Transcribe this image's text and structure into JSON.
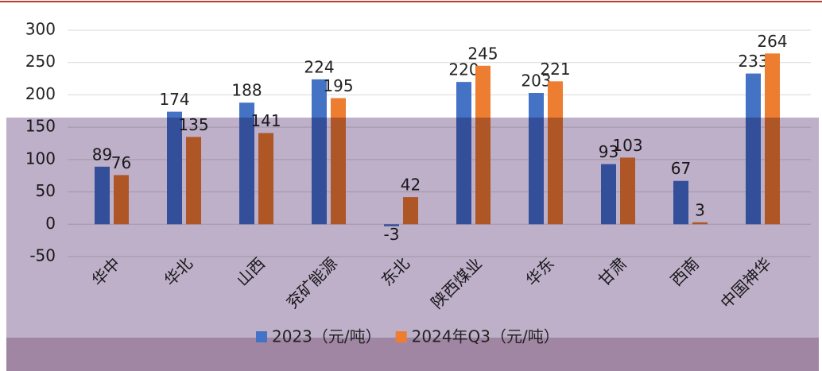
{
  "chart_data": {
    "type": "bar",
    "categories": [
      "华中",
      "华北",
      "山西",
      "兖矿能源",
      "东北",
      "陕西煤业",
      "华东",
      "甘肃",
      "西南",
      "中国神华"
    ],
    "series": [
      {
        "name": "2023（元/吨）",
        "color": "#4472c4",
        "values": [
          89,
          174,
          188,
          224,
          -3,
          220,
          203,
          93,
          67,
          233
        ]
      },
      {
        "name": "2024年Q3（元/吨）",
        "color": "#ed7d31",
        "values": [
          76,
          135,
          141,
          195,
          42,
          245,
          221,
          103,
          3,
          264
        ]
      }
    ],
    "ylim": [
      -50,
      300
    ],
    "yticks": [
      -50,
      0,
      50,
      100,
      150,
      200,
      250,
      300
    ],
    "grid": true,
    "legend": "bottom"
  }
}
